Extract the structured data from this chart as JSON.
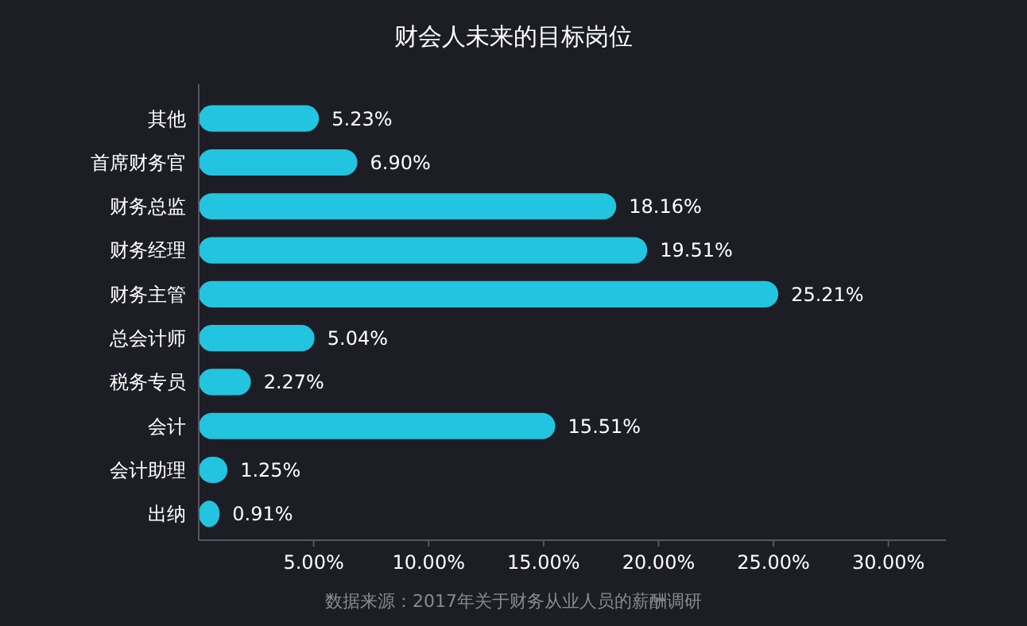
{
  "chart_data": {
    "type": "bar",
    "orientation": "horizontal",
    "title": "财会人未来的目标岗位",
    "categories": [
      "其他",
      "首席财务官",
      "财务总监",
      "财务经理",
      "财务主管",
      "总会计师",
      "税务专员",
      "会计",
      "会计助理",
      "出纳"
    ],
    "values": [
      5.23,
      6.9,
      18.16,
      19.51,
      25.21,
      5.04,
      2.27,
      15.51,
      1.25,
      0.91
    ],
    "value_labels": [
      "5.23%",
      "6.90%",
      "18.16%",
      "19.51%",
      "25.21%",
      "5.04%",
      "2.27%",
      "15.51%",
      "1.25%",
      "0.91%"
    ],
    "color": "#22c4e0",
    "xlim": [
      0,
      32.5
    ],
    "xticks": [
      {
        "value": 5,
        "label": "5.00%"
      },
      {
        "value": 10,
        "label": "10.00%"
      },
      {
        "value": 15,
        "label": "15.00%"
      },
      {
        "value": 20,
        "label": "20.00%"
      },
      {
        "value": 25,
        "label": "25.00%"
      },
      {
        "value": 30,
        "label": "30.00%"
      }
    ],
    "annotations": [
      "数据来源：2017年关于财务从业人员的薪酬调研"
    ]
  }
}
